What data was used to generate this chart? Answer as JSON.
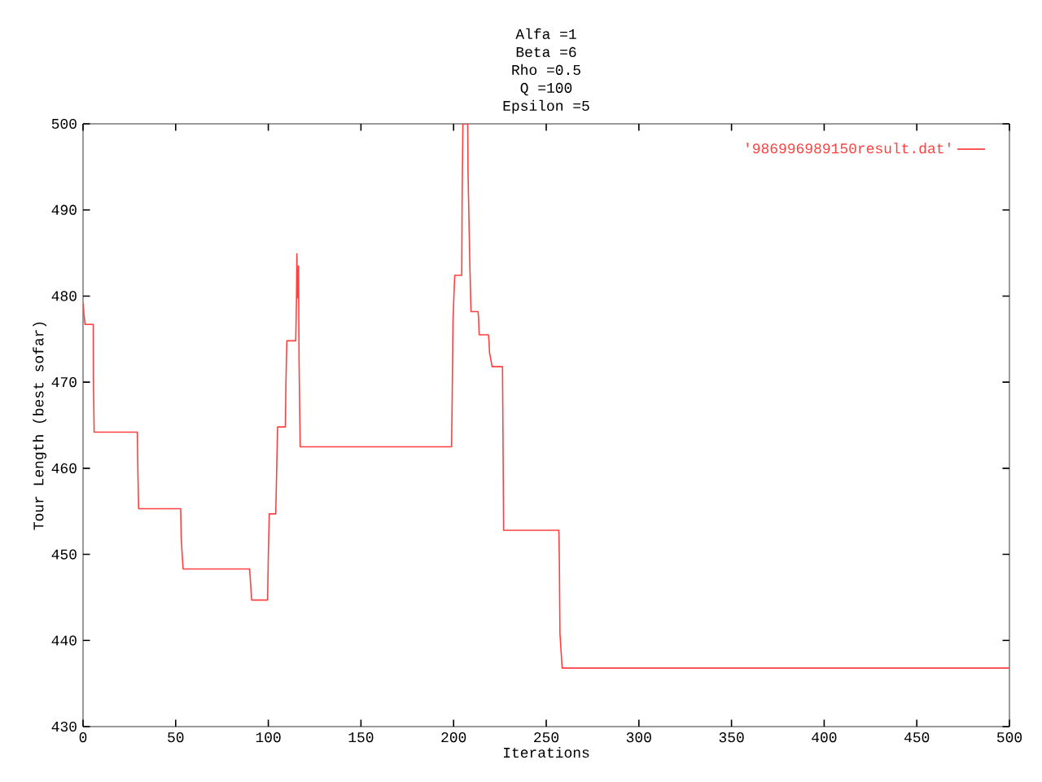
{
  "chart_data": {
    "type": "line",
    "title": "Alfa =1\nBeta =6\nRho =0.5\nQ =100\nEpsilon =5",
    "xlabel": "Iterations",
    "ylabel": "Tour Length (best sofar)",
    "x": [
      0,
      0.5,
      1.1,
      5.5,
      5.6,
      6,
      29.3,
      29.6,
      30,
      52.7,
      53,
      54,
      89.9,
      90.2,
      91,
      99.6,
      100,
      100.5,
      104,
      104.5,
      105,
      109.2,
      109.5,
      110,
      114.8,
      115.2,
      115.4,
      115.8,
      116.3,
      116.6,
      117.2,
      198.9,
      199.2,
      199.7,
      200.6,
      204.4,
      204.6,
      205,
      207.6,
      207.8,
      208.8,
      209.4,
      213.2,
      213.5,
      213.8,
      218.8,
      219.1,
      219.4,
      220.8,
      226.4,
      226.7,
      227,
      256.8,
      257.1,
      257.4,
      258.6,
      500
    ],
    "series": [
      {
        "name": "'986996989150result.dat'",
        "color": "#ff4040",
        "values": [
          479.2,
          477.9,
          476.7,
          476.7,
          470.5,
          464.2,
          464.2,
          459.7,
          455.3,
          455.3,
          451.8,
          448.3,
          448.3,
          447.4,
          444.7,
          444.7,
          449.7,
          454.7,
          454.7,
          459.7,
          464.8,
          464.8,
          469.8,
          474.8,
          474.8,
          479.8,
          484.9,
          479.8,
          483.5,
          472.4,
          462.5,
          462.5,
          467.4,
          477.3,
          482.4,
          482.4,
          491.2,
          500,
          500,
          494.3,
          483.3,
          478.2,
          478.2,
          477.4,
          475.5,
          475.5,
          474.8,
          473.4,
          471.8,
          471.8,
          462.4,
          452.8,
          452.8,
          448.9,
          440.8,
          436.8,
          436.8
        ]
      }
    ],
    "xlim": [
      0,
      500
    ],
    "ylim": [
      430,
      500
    ],
    "xticks": [
      0,
      50,
      100,
      150,
      200,
      250,
      300,
      350,
      400,
      450,
      500
    ],
    "yticks": [
      430,
      440,
      450,
      460,
      470,
      480,
      490,
      500
    ],
    "legend": "top right",
    "grid": false,
    "marker": "none",
    "line_style": "solid"
  }
}
